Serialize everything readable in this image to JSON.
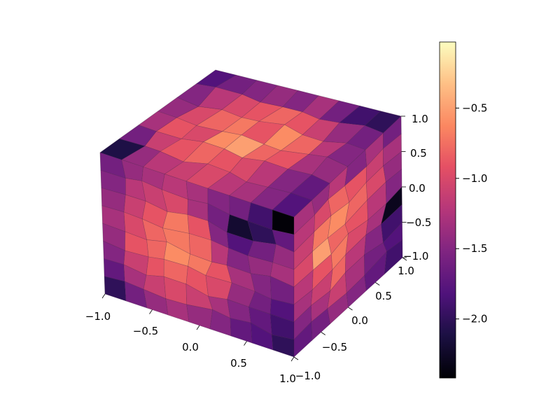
{
  "chart_data": {
    "type": "heatmap",
    "subtype": "3d-voronoi-cube-surface",
    "title": "",
    "xlabel": "",
    "ylabel": "",
    "zlabel": "",
    "xlim": [
      -1.0,
      1.0
    ],
    "ylim": [
      -1.0,
      1.0
    ],
    "zlim": [
      -1.0,
      1.0
    ],
    "x_ticks": [
      "−1.0",
      "−0.5",
      "0.0",
      "0.5",
      "1.0"
    ],
    "y_ticks": [
      "−1.0",
      "−0.5",
      "0.0",
      "0.5",
      "1.0"
    ],
    "z_ticks": [
      "−1.0",
      "−0.5",
      "0.0",
      "0.5",
      "1.0"
    ],
    "colormap": "magma",
    "colorbar": {
      "range": [
        -2.42,
        -0.03
      ],
      "ticks": [
        {
          "value": -0.5,
          "label": "−0.5"
        },
        {
          "value": -1.0,
          "label": "−1.0"
        },
        {
          "value": -1.5,
          "label": "−1.5"
        },
        {
          "value": -2.0,
          "label": "−2.0"
        }
      ]
    },
    "faces": {
      "top": {
        "cols": 9,
        "rows": 6,
        "values": [
          [
            -1.8,
            -1.6,
            -1.5,
            -1.4,
            -1.5,
            -1.3,
            -1.6,
            -1.9,
            -2.0
          ],
          [
            -1.5,
            -1.2,
            -1.0,
            -0.9,
            -0.8,
            -0.9,
            -1.1,
            -1.4,
            -1.6
          ],
          [
            -1.4,
            -1.0,
            -0.8,
            -0.7,
            -0.9,
            -0.6,
            -0.8,
            -1.2,
            -1.5
          ],
          [
            -1.3,
            -0.9,
            -1.0,
            -0.6,
            -0.5,
            -0.8,
            -0.9,
            -1.3,
            -1.4
          ],
          [
            -1.6,
            -1.1,
            -0.9,
            -0.8,
            -0.9,
            -1.0,
            -1.2,
            -1.5,
            -1.7
          ],
          [
            -2.1,
            -1.4,
            -1.2,
            -1.1,
            -1.0,
            -1.2,
            -1.3,
            -1.5,
            -1.8
          ]
        ]
      },
      "front": {
        "cols": 9,
        "rows": 8,
        "values": [
          [
            -1.6,
            -1.4,
            -1.3,
            -1.2,
            -1.3,
            -1.5,
            -1.6,
            -1.9,
            -2.4
          ],
          [
            -1.5,
            -1.2,
            -1.1,
            -1.0,
            -1.3,
            -1.6,
            -2.2,
            -2.0,
            -1.7
          ],
          [
            -1.4,
            -1.1,
            -0.9,
            -0.7,
            -0.9,
            -1.5,
            -1.8,
            -1.6,
            -1.4
          ],
          [
            -1.3,
            -1.0,
            -0.8,
            -0.7,
            -0.8,
            -1.2,
            -1.5,
            -1.4,
            -1.3
          ],
          [
            -1.4,
            -0.9,
            -0.8,
            -0.6,
            -0.7,
            -0.9,
            -1.3,
            -1.5,
            -1.6
          ],
          [
            -1.5,
            -1.1,
            -0.9,
            -0.8,
            -0.9,
            -1.0,
            -1.4,
            -1.6,
            -1.8
          ],
          [
            -1.7,
            -1.3,
            -1.1,
            -1.0,
            -1.1,
            -1.3,
            -1.5,
            -1.7,
            -1.9
          ],
          [
            -2.0,
            -1.6,
            -1.4,
            -1.3,
            -1.4,
            -1.5,
            -1.7,
            -1.8,
            -2.0
          ]
        ]
      },
      "right": {
        "cols": 6,
        "rows": 8,
        "values": [
          [
            -1.3,
            -1.4,
            -1.2,
            -1.5,
            -1.3,
            -1.6
          ],
          [
            -1.2,
            -1.0,
            -0.8,
            -0.9,
            -1.1,
            -1.3
          ],
          [
            -1.1,
            -0.7,
            -0.6,
            -0.8,
            -1.0,
            -1.4
          ],
          [
            -1.0,
            -0.5,
            -0.8,
            -0.9,
            -1.2,
            -1.5
          ],
          [
            -1.2,
            -0.9,
            -0.7,
            -1.0,
            -1.3,
            -2.3
          ],
          [
            -1.3,
            -1.1,
            -0.8,
            -1.2,
            -1.5,
            -1.9
          ],
          [
            -1.5,
            -1.3,
            -1.1,
            -1.3,
            -1.6,
            -1.8
          ],
          [
            -1.7,
            -1.6,
            -1.4,
            -1.5,
            -1.7,
            -1.9
          ]
        ]
      }
    },
    "grid": false
  }
}
